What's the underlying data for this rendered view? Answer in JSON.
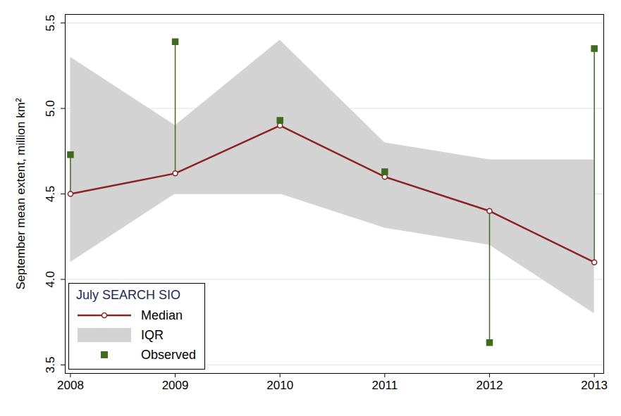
{
  "chart_data": {
    "type": "line",
    "x": [
      2008,
      2009,
      2010,
      2011,
      2012,
      2013
    ],
    "xlim": [
      2007.95,
      2013.09
    ],
    "xticks": [
      2008,
      2009,
      2010,
      2011,
      2012,
      2013
    ],
    "ylim": [
      3.45,
      5.55
    ],
    "yticks": [
      3.5,
      {
        "value": 4,
        "label": "4.0"
      },
      4.5,
      {
        "value": 5,
        "label": "5.0"
      },
      5.5
    ],
    "y_label": "September mean extent, million km²",
    "grid": true,
    "legend": "bottom-left",
    "legend_title": "July SEARCH SIO",
    "series": [
      {
        "name": "Median",
        "type": "line",
        "color": "#8b2323",
        "marker": "circle",
        "values": [
          4.5,
          4.62,
          4.9,
          4.6,
          4.4,
          4.1
        ]
      },
      {
        "name": "IQR",
        "type": "area",
        "color": "#d3d3d3",
        "lower": [
          4.1,
          4.5,
          4.5,
          4.3,
          4.2,
          3.8
        ],
        "upper": [
          5.3,
          4.9,
          5.4,
          4.8,
          4.7,
          4.7
        ]
      },
      {
        "name": "Observed",
        "type": "scatter",
        "color": "#3f6b1e",
        "marker": "square",
        "values": [
          4.73,
          5.39,
          4.93,
          4.63,
          3.63,
          5.35
        ]
      }
    ]
  }
}
